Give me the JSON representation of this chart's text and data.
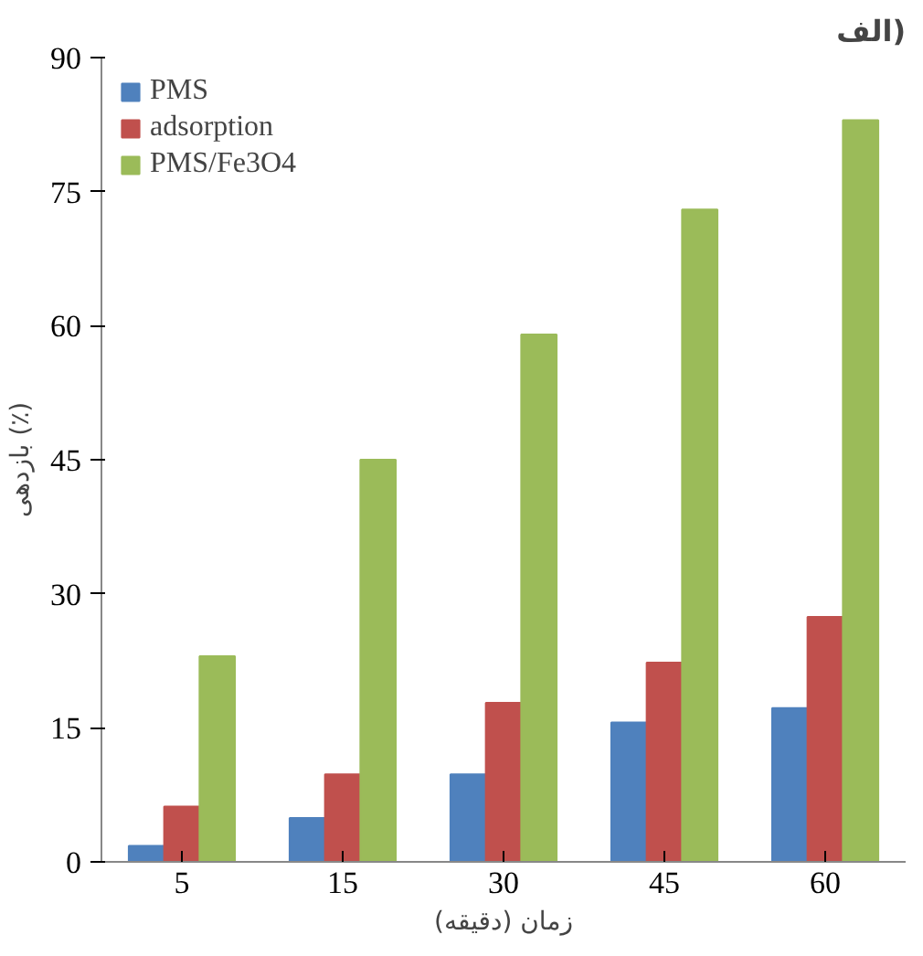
{
  "chart_data": {
    "type": "bar",
    "title": "الف)",
    "xlabel": "زمان (دقیقه)",
    "ylabel": "بازدهی (٪)",
    "categories": [
      "5",
      "15",
      "30",
      "45",
      "60"
    ],
    "series": [
      {
        "name": "PMS",
        "color": "#4f81bd",
        "values": [
          1.8,
          4.9,
          9.8,
          15.6,
          17.2
        ]
      },
      {
        "name": "adsorption",
        "color": "#c0504d",
        "values": [
          6.2,
          9.8,
          17.8,
          22.3,
          27.4
        ]
      },
      {
        "name": "PMS/Fe3O4",
        "color": "#9bbb59",
        "values": [
          23,
          45,
          59,
          73,
          83
        ]
      }
    ],
    "ylim": [
      0,
      90
    ],
    "yticks": [
      0,
      15,
      30,
      45,
      60,
      75,
      90
    ],
    "grid": false,
    "legend": "top left"
  }
}
